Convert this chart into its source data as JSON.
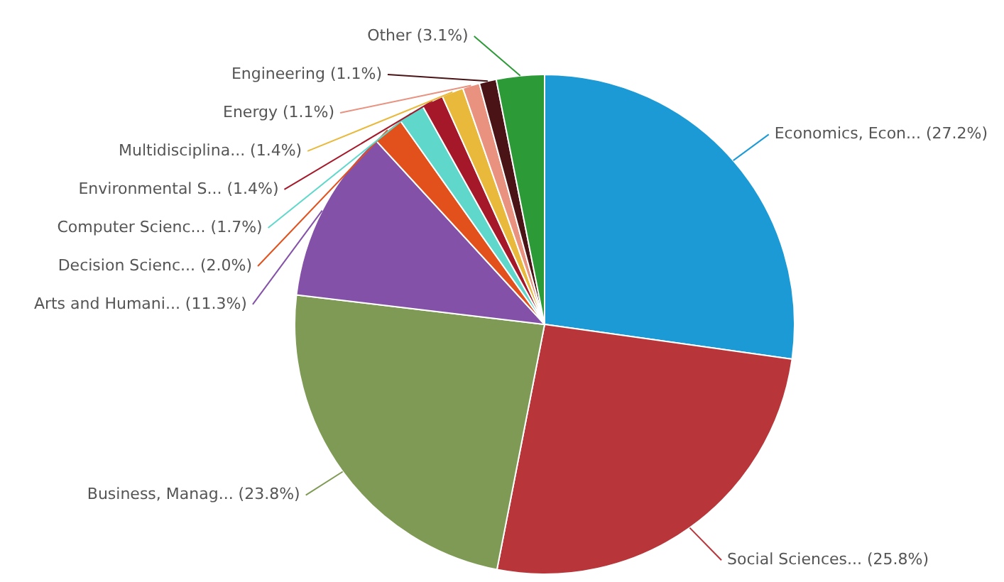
{
  "chart_data": {
    "type": "pie",
    "categories": [
      "Economics, Econ...",
      "Social Sciences...",
      "Business, Manag...",
      "Arts and Humani...",
      "Decision Scienc...",
      "Computer Scienc...",
      "Environmental S...",
      "Multidisciplina...",
      "Energy",
      "Engineering",
      "Other"
    ],
    "values": [
      27.2,
      25.8,
      23.8,
      11.3,
      2.0,
      1.7,
      1.4,
      1.4,
      1.1,
      1.1,
      3.1
    ],
    "value_labels": [
      "(27.2%)",
      "(25.8%)",
      "(23.8%)",
      "(11.3%)",
      "(2.0%)",
      "(1.7%)",
      "(1.4%)",
      "(1.4%)",
      "(1.1%)",
      "(1.1%)",
      "(3.1%)"
    ],
    "colors": [
      "#1b9ad6",
      "#b8353a",
      "#7e9a55",
      "#8451a8",
      "#e2501c",
      "#5fd8cb",
      "#a5182a",
      "#e9b93c",
      "#e8927f",
      "#4a1416",
      "#2c9a37"
    ]
  }
}
